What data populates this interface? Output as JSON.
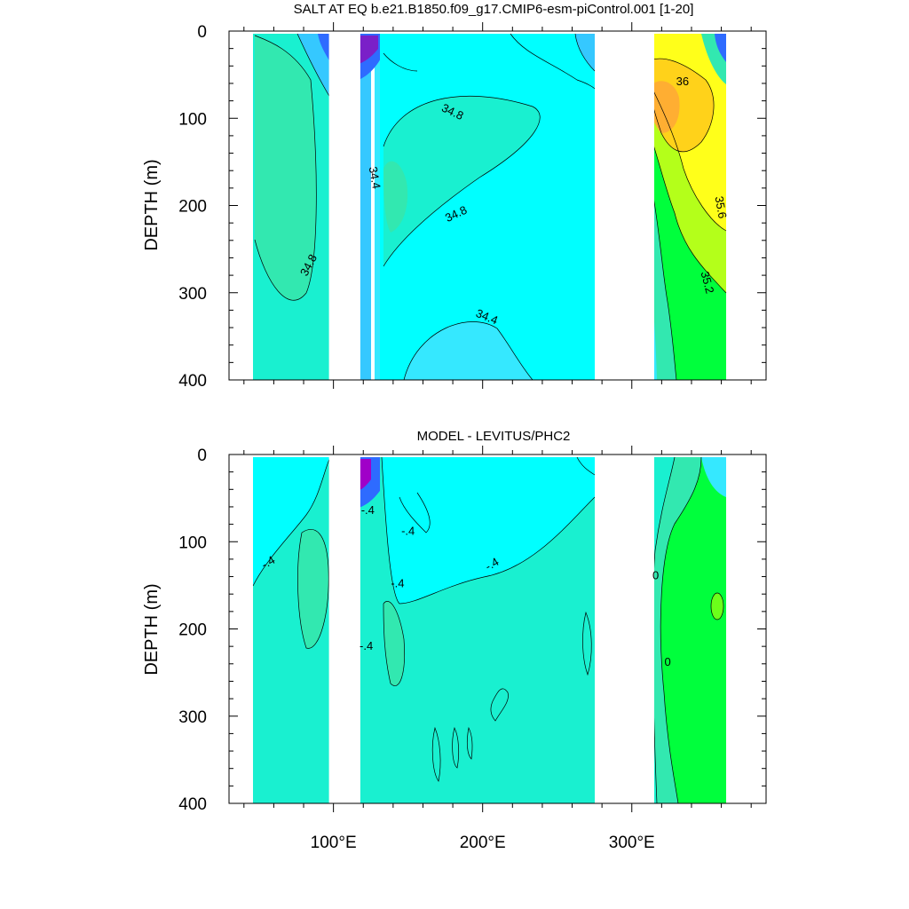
{
  "chart_data": [
    {
      "type": "contour",
      "title": "SALT AT EQ b.e21.B1850.f09_g17.CMIP6-esm-piControl.001 [1-20]",
      "xlabel": "",
      "ylabel": "DEPTH (m)",
      "xlim": [
        30,
        390
      ],
      "ylim": [
        400,
        0
      ],
      "x_ticks": [
        100,
        200,
        300
      ],
      "x_tick_labels": [
        "100°E",
        "200°E",
        "300°E"
      ],
      "y_ticks": [
        0,
        100,
        200,
        300,
        400
      ],
      "y_tick_labels": [
        "0",
        "100",
        "200",
        "300",
        "400"
      ],
      "land_longitudes": [
        [
          30,
          46
        ],
        [
          97,
          118
        ],
        [
          279,
          315
        ],
        [
          370,
          390
        ]
      ],
      "contour_labels": [
        {
          "text": "34.8",
          "lon": 180,
          "depth": 92,
          "rot": 25
        },
        {
          "text": "34.4",
          "lon": 128,
          "depth": 168,
          "rot": 80
        },
        {
          "text": "34.8",
          "lon": 182,
          "depth": 209,
          "rot": -25
        },
        {
          "text": "34.8",
          "lon": 83,
          "depth": 268,
          "rot": -62
        },
        {
          "text": "34.4",
          "lon": 203,
          "depth": 327,
          "rot": 22
        },
        {
          "text": "36",
          "lon": 334,
          "depth": 57,
          "rot": 0
        },
        {
          "text": "35.6",
          "lon": 360,
          "depth": 202,
          "rot": 80
        },
        {
          "text": "35.2",
          "lon": 351,
          "depth": 288,
          "rot": 75
        }
      ],
      "contour_interval": 0.2
    },
    {
      "type": "contour",
      "title": "MODEL - LEVITUS/PHC2",
      "xlabel": "",
      "ylabel": "DEPTH (m)",
      "xlim": [
        30,
        390
      ],
      "ylim": [
        400,
        0
      ],
      "x_ticks": [
        100,
        200,
        300
      ],
      "x_tick_labels": [
        "100°E",
        "200°E",
        "300°E"
      ],
      "y_ticks": [
        0,
        100,
        200,
        300,
        400
      ],
      "y_tick_labels": [
        "0",
        "100",
        "200",
        "300",
        "400"
      ],
      "land_longitudes": [
        [
          30,
          46
        ],
        [
          97,
          118
        ],
        [
          279,
          315
        ],
        [
          370,
          390
        ]
      ],
      "contour_labels": [
        {
          "text": "-.4",
          "lon": 123,
          "depth": 63,
          "rot": 0
        },
        {
          "text": "-.4",
          "lon": 150,
          "depth": 87,
          "rot": 0
        },
        {
          "text": "-.4",
          "lon": 56,
          "depth": 123,
          "rot": -30
        },
        {
          "text": "-.4",
          "lon": 143,
          "depth": 147,
          "rot": 0
        },
        {
          "text": "-.4",
          "lon": 206,
          "depth": 125,
          "rot": -30
        },
        {
          "text": "-.4",
          "lon": 122,
          "depth": 219,
          "rot": 0
        },
        {
          "text": "0",
          "lon": 316,
          "depth": 138,
          "rot": 0
        },
        {
          "text": "0",
          "lon": 324,
          "depth": 237,
          "rot": 0
        }
      ],
      "contour_interval": 0.2
    }
  ],
  "colors": {
    "deep_blue": "#1f44ff",
    "blue": "#2e9bff",
    "light_blue": "#35c8ff",
    "cyan": "#35e8ff",
    "aqua": "#00ffff",
    "aquamarine": "#19f0d0",
    "seafoam": "#32e8b0",
    "green": "#00ff3c",
    "lime": "#6cff1a",
    "yellow_green": "#b4ff1a",
    "yellow": "#ffff1a",
    "gold": "#ffd21a",
    "orange": "#ffae32",
    "magenta": "#a000c8",
    "purple": "#5a00a0",
    "land": "#ffffff"
  }
}
